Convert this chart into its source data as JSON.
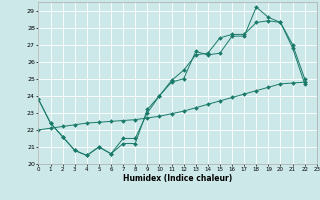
{
  "title": "",
  "xlabel": "Humidex (Indice chaleur)",
  "ylabel": "",
  "background_color": "#cce8e8",
  "grid_color": "#b0d4d4",
  "line_color": "#1a7a6a",
  "xlim": [
    0,
    23
  ],
  "ylim": [
    20,
    29.5
  ],
  "yticks": [
    20,
    21,
    22,
    23,
    24,
    25,
    26,
    27,
    28,
    29
  ],
  "xticks": [
    0,
    1,
    2,
    3,
    4,
    5,
    6,
    7,
    8,
    9,
    10,
    11,
    12,
    13,
    14,
    15,
    16,
    17,
    18,
    19,
    20,
    21,
    22,
    23
  ],
  "series": [
    {
      "x": [
        0,
        1,
        2,
        3,
        4,
        5,
        6,
        7,
        8,
        9,
        10,
        11,
        12,
        13,
        14,
        15,
        16,
        17,
        18,
        19,
        20,
        21,
        22
      ],
      "y": [
        23.8,
        22.4,
        21.6,
        20.8,
        20.5,
        21.0,
        20.6,
        21.2,
        21.2,
        23.2,
        24.0,
        24.8,
        25.0,
        26.6,
        26.4,
        26.5,
        27.5,
        27.5,
        29.2,
        28.6,
        28.3,
        27.0,
        25.0
      ]
    },
    {
      "x": [
        0,
        1,
        2,
        3,
        4,
        5,
        6,
        7,
        8,
        9,
        10,
        11,
        12,
        13,
        14,
        15,
        16,
        17,
        18,
        19,
        20,
        21,
        22
      ],
      "y": [
        23.8,
        22.4,
        21.6,
        20.8,
        20.5,
        21.0,
        20.6,
        21.5,
        21.5,
        23.0,
        24.0,
        24.9,
        25.5,
        26.4,
        26.5,
        27.4,
        27.6,
        27.6,
        28.3,
        28.4,
        28.3,
        26.8,
        24.7
      ]
    },
    {
      "x": [
        0,
        1,
        2,
        3,
        4,
        5,
        6,
        7,
        8,
        9,
        10,
        11,
        12,
        13,
        14,
        15,
        16,
        17,
        18,
        19,
        20,
        21,
        22
      ],
      "y": [
        22.0,
        22.1,
        22.2,
        22.3,
        22.4,
        22.45,
        22.5,
        22.55,
        22.6,
        22.7,
        22.8,
        22.95,
        23.1,
        23.3,
        23.5,
        23.7,
        23.9,
        24.1,
        24.3,
        24.5,
        24.7,
        24.75,
        24.8
      ]
    }
  ]
}
